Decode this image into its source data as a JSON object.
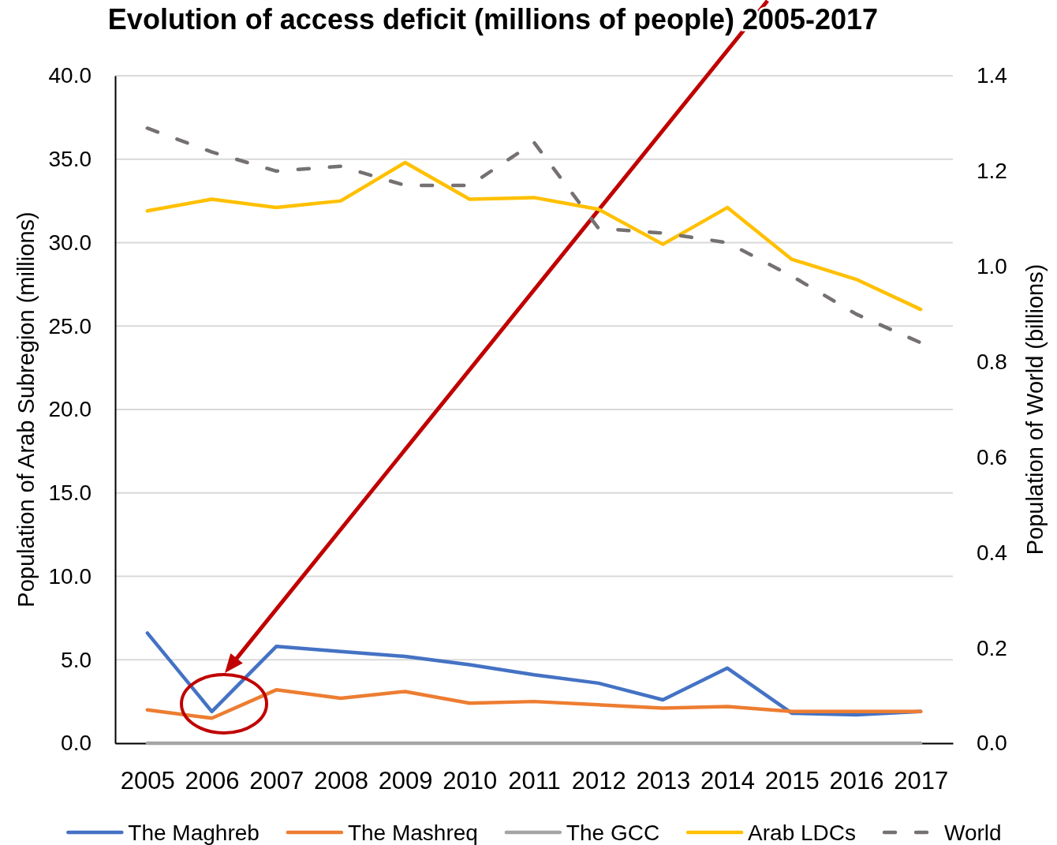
{
  "chart_data": {
    "type": "line",
    "title": "Evolution of access deficit (millions of people) 2005-2017",
    "ylabel": "Population of Arab Subregion (millions)",
    "y2label": "Population of World (billions)",
    "categories": [
      "2005",
      "2006",
      "2007",
      "2008",
      "2009",
      "2010",
      "2011",
      "2012",
      "2013",
      "2014",
      "2015",
      "2016",
      "2017"
    ],
    "ylim": [
      0,
      40
    ],
    "yticks": [
      {
        "value": 0,
        "label": "0.0"
      },
      {
        "value": 5,
        "label": "5.0"
      },
      {
        "value": 10,
        "label": "10.0"
      },
      {
        "value": 15,
        "label": "15.0"
      },
      {
        "value": 20,
        "label": "20.0"
      },
      {
        "value": 25,
        "label": "25.0"
      },
      {
        "value": 30,
        "label": "30.0"
      },
      {
        "value": 35,
        "label": "35.0"
      },
      {
        "value": 40,
        "label": "40.0"
      }
    ],
    "y2lim": [
      0,
      1.4
    ],
    "y2ticks": [
      {
        "value": 0,
        "label": "0.0"
      },
      0.2,
      0.4,
      0.6,
      0.8,
      {
        "value": 1,
        "label": "1.0"
      },
      1.2,
      1.4
    ],
    "grid": "y",
    "legend": "bottom",
    "series": [
      {
        "name": "The Maghreb",
        "color": "#4472c4",
        "values": [
          6.6,
          1.9,
          5.8,
          5.5,
          5.2,
          4.7,
          4.1,
          3.6,
          2.6,
          4.5,
          1.8,
          1.7,
          1.9
        ]
      },
      {
        "name": "The Mashreq",
        "color": "#ed7d31",
        "values": [
          2.0,
          1.5,
          3.2,
          2.7,
          3.1,
          2.4,
          2.5,
          2.3,
          2.1,
          2.2,
          1.9,
          1.9,
          1.9
        ]
      },
      {
        "name": "The GCC",
        "color": "#a5a5a5",
        "values": [
          0,
          0,
          0,
          0,
          0,
          0,
          0,
          0,
          0,
          0,
          0,
          0,
          0
        ]
      },
      {
        "name": "Arab LDCs",
        "color": "#ffc000",
        "values": [
          31.9,
          32.6,
          32.1,
          32.5,
          34.8,
          32.6,
          32.7,
          32.0,
          29.9,
          32.1,
          29.0,
          27.8,
          26.0
        ]
      },
      {
        "name": "World",
        "color": "#767171",
        "axis": "y2",
        "line_style": "dashed",
        "values": [
          1.29,
          1.24,
          1.2,
          1.21,
          1.17,
          1.17,
          1.26,
          1.08,
          1.07,
          1.05,
          0.98,
          0.9,
          0.84
        ]
      }
    ]
  }
}
